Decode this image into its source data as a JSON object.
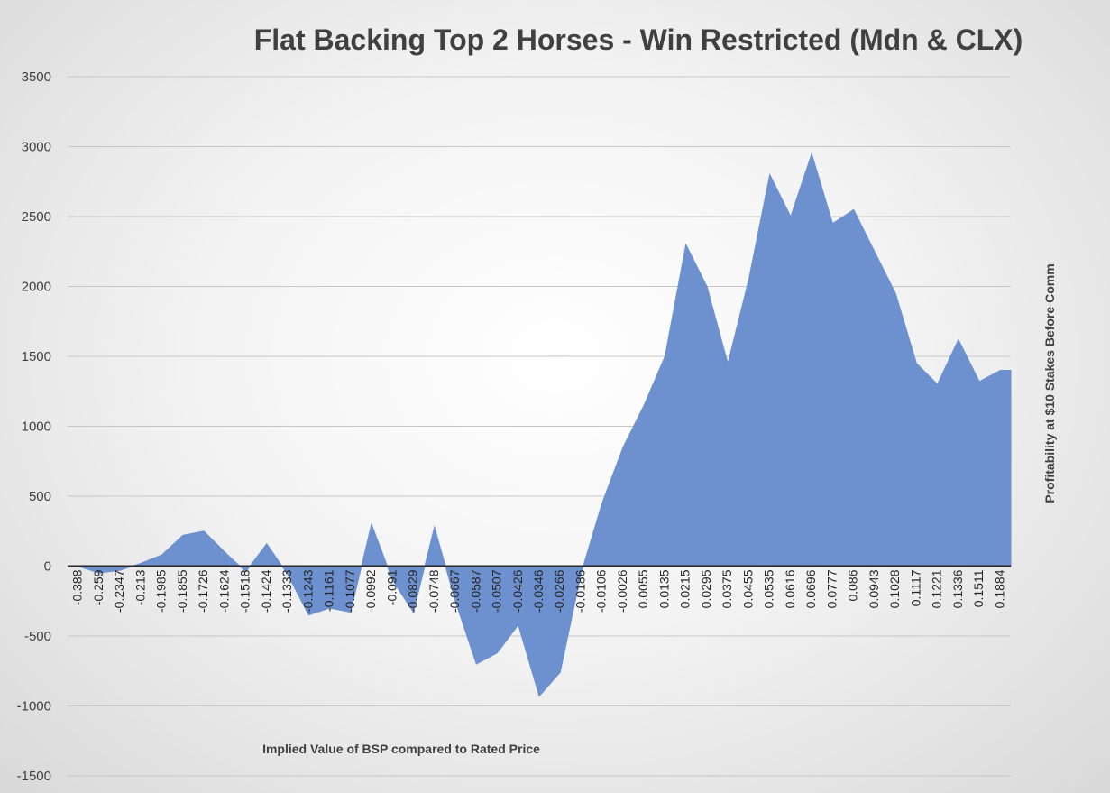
{
  "chart_data": {
    "type": "area",
    "title": "Flat Backing Top 2 Horses - Win Restricted (Mdn & CLX)",
    "xlabel": "Implied Value of BSP compared to Rated Price",
    "ylabel": "Profitability at $10 Stakes Before Comm",
    "ylim": [
      -1500,
      3500
    ],
    "yticks": [
      3500,
      3000,
      2500,
      2000,
      1500,
      1000,
      500,
      0,
      -500,
      -1000,
      -1500
    ],
    "grid": true,
    "legend": "none",
    "colors": {
      "area": "#6d90cf",
      "gridline": "#c6c6c6",
      "zero_axis": "#262626"
    },
    "x_tick_labels": [
      "-0.388",
      "-0.259",
      "-0.2347",
      "-0.213",
      "-0.1985",
      "-0.1855",
      "-0.1726",
      "-0.1624",
      "-0.1518",
      "-0.1424",
      "-0.1333",
      "-0.1243",
      "-0.1161",
      "-0.1077",
      "-0.0992",
      "-0.091",
      "-0.0829",
      "-0.0748",
      "-0.0667",
      "-0.0587",
      "-0.0507",
      "-0.0426",
      "-0.0346",
      "-0.0266",
      "-0.0186",
      "-0.0106",
      "-0.0026",
      "0.0055",
      "0.0135",
      "0.0215",
      "0.0295",
      "0.0375",
      "0.0455",
      "0.0535",
      "0.0616",
      "0.0696",
      "0.0777",
      "0.086",
      "0.0943",
      "0.1028",
      "0.1117",
      "0.1221",
      "0.1336",
      "0.1511",
      "0.1884"
    ],
    "series": [
      {
        "points": [
          [
            -0.388,
            0
          ],
          [
            -0.259,
            -50
          ],
          [
            -0.2347,
            -30
          ],
          [
            -0.213,
            20
          ],
          [
            -0.1985,
            80
          ],
          [
            -0.1855,
            220
          ],
          [
            -0.1726,
            250
          ],
          [
            -0.1624,
            100
          ],
          [
            -0.1518,
            -40
          ],
          [
            -0.1424,
            160
          ],
          [
            -0.1333,
            -60
          ],
          [
            -0.1243,
            -350
          ],
          [
            -0.1161,
            -300
          ],
          [
            -0.1077,
            -330
          ],
          [
            -0.0992,
            300
          ],
          [
            -0.091,
            -100
          ],
          [
            -0.0829,
            -330
          ],
          [
            -0.0748,
            280
          ],
          [
            -0.0667,
            -250
          ],
          [
            -0.0587,
            -700
          ],
          [
            -0.0507,
            -620
          ],
          [
            -0.0426,
            -420
          ],
          [
            -0.0346,
            -930
          ],
          [
            -0.0266,
            -760
          ],
          [
            -0.0186,
            -50
          ],
          [
            -0.0106,
            450
          ],
          [
            -0.0026,
            850
          ],
          [
            0.0055,
            1150
          ],
          [
            0.0135,
            1500
          ],
          [
            0.0215,
            2300
          ],
          [
            0.0295,
            2000
          ],
          [
            0.0375,
            1450
          ],
          [
            0.0455,
            2050
          ],
          [
            0.0535,
            2800
          ],
          [
            0.0616,
            2500
          ],
          [
            0.0696,
            2950
          ],
          [
            0.0777,
            2450
          ],
          [
            0.086,
            2550
          ],
          [
            0.0943,
            2250
          ],
          [
            0.1028,
            1950
          ],
          [
            0.1117,
            1450
          ],
          [
            0.1221,
            1300
          ],
          [
            0.1336,
            1620
          ],
          [
            0.1511,
            1320
          ],
          [
            0.1884,
            1400
          ]
        ]
      }
    ]
  }
}
